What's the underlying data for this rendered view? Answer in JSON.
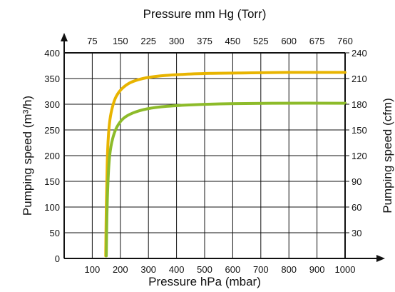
{
  "chart_data": {
    "type": "line",
    "title": "",
    "xlabel": "Pressure hPa (mbar)",
    "x2label": "Pressure mm Hg (Torr)",
    "ylabel": "Pumping speed (m³/h)",
    "y2label": "Pumping speed (cfm)",
    "xlim": [
      0,
      1000
    ],
    "ylim": [
      0,
      400
    ],
    "x_ticks": [
      "100",
      "200",
      "300",
      "400",
      "500",
      "600",
      "700",
      "800",
      "900",
      "1000"
    ],
    "x2_ticks": [
      "75",
      "150",
      "225",
      "300",
      "375",
      "450",
      "525",
      "600",
      "675",
      "760"
    ],
    "y_ticks": [
      "0",
      "50",
      "100",
      "150",
      "200",
      "250",
      "300",
      "350",
      "400"
    ],
    "y2_ticks": [
      "30",
      "60",
      "90",
      "120",
      "150",
      "180",
      "210",
      "240"
    ],
    "grid": true,
    "series": [
      {
        "color": "#e8b400",
        "x": [
          148,
          150,
          153,
          157,
          163,
          172,
          185,
          205,
          235,
          280,
          340,
          420,
          520,
          650,
          800,
          1000
        ],
        "y": [
          5,
          100,
          180,
          235,
          270,
          295,
          315,
          330,
          342,
          350,
          355,
          358,
          360,
          361,
          362,
          362
        ]
      },
      {
        "color": "#8dbb2a",
        "x": [
          150,
          152,
          156,
          162,
          172,
          187,
          210,
          245,
          295,
          365,
          460,
          590,
          750,
          1000
        ],
        "y": [
          5,
          80,
          150,
          200,
          232,
          255,
          272,
          283,
          291,
          296,
          299,
          301,
          302,
          302
        ]
      }
    ]
  }
}
